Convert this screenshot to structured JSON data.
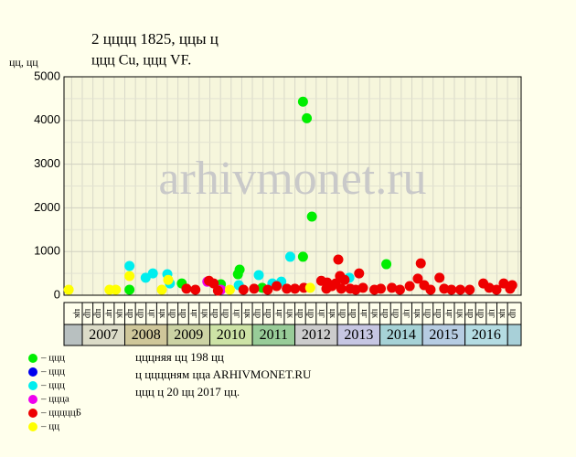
{
  "chart_data": {
    "type": "scatter",
    "title": "2 цццц 1825, ццы ц",
    "subtitle": "ццц Cu, ццц VF.",
    "y_label": "цц, цц",
    "watermark": "arhivmonet.ru",
    "xlim": [
      2006.57,
      2017.32
    ],
    "ylim": [
      0,
      5000
    ],
    "yticks": [
      0,
      1000,
      2000,
      3000,
      4000,
      5000
    ],
    "ygrid_minor": [
      500,
      1500,
      2500,
      3500,
      4500
    ],
    "grid": true,
    "years": [
      "2007",
      "2008",
      "2009",
      "2010",
      "2011",
      "2012",
      "2013",
      "2014",
      "2015",
      "2016"
    ],
    "year_colors": [
      "#dcdcc8",
      "#cfc79a",
      "#ccd3a4",
      "#cde3a6",
      "#98cc98",
      "#cccccc",
      "#c6c6e2",
      "#a6d2d6",
      "#b6cce2",
      "#b4dce2"
    ],
    "edge_colors": [
      "#b8c0c0",
      "#a8d0d8"
    ],
    "quarters_start": 2006.75,
    "quarter_labels": [
      "цк",
      "цр",
      "цр",
      "цг",
      "цк",
      "цр",
      "цр",
      "цг",
      "цк",
      "цр",
      "цр",
      "цг",
      "цк",
      "цр",
      "цр",
      "цг",
      "цк",
      "цр",
      "цр",
      "цг",
      "цк",
      "цр",
      "цр",
      "цг",
      "цк",
      "цр",
      "цр",
      "цг",
      "цк",
      "цр",
      "цр",
      "цг",
      "цк",
      "цр",
      "цр",
      "цг",
      "цк",
      "цр",
      "цр",
      "цг",
      "цк",
      "цр"
    ],
    "series": [
      {
        "name": "– ццц",
        "color": "#00ee00",
        "x": [
          2008.11,
          2009.34,
          2010.26,
          2010.66,
          2010.7,
          2011.23,
          2012.19,
          2012.28,
          2012.4,
          2012.19,
          2014.15
        ],
        "values": [
          125,
          270,
          250,
          480,
          585,
          170,
          4430,
          4050,
          1800,
          880,
          710
        ]
      },
      {
        "name": "– ццц",
        "color": "#0000ee",
        "x": [],
        "values": []
      },
      {
        "name": "– ццц",
        "color": "#00eeee",
        "x": [
          2008.11,
          2008.49,
          2008.66,
          2009.0,
          2009.06,
          2010.68,
          2011.15,
          2011.47,
          2011.68,
          2011.89,
          2013.28
        ],
        "values": [
          670,
          400,
          500,
          480,
          270,
          230,
          460,
          270,
          310,
          880,
          400
        ]
      },
      {
        "name": "– ццца",
        "color": "#ee00ee",
        "x": [
          2009.94,
          2010.26
        ],
        "values": [
          310,
          125
        ]
      },
      {
        "name": "– цццццБ",
        "color": "#ee0000",
        "x": [
          2009.45,
          2009.66,
          2009.98,
          2010.09,
          2010.19,
          2010.79,
          2011.04,
          2011.36,
          2011.57,
          2011.81,
          2012.0,
          2012.21,
          2012.62,
          2012.74,
          2012.76,
          2012.87,
          2012.96,
          2013.02,
          2013.06,
          2013.09,
          2013.17,
          2013.3,
          2013.43,
          2013.51,
          2013.6,
          2013.87,
          2014.02,
          2014.28,
          2014.47,
          2014.7,
          2014.89,
          2014.96,
          2015.04,
          2015.19,
          2015.4,
          2015.51,
          2015.68,
          2015.89,
          2016.11,
          2016.43,
          2016.57,
          2016.74,
          2016.91,
          2017.06,
          2017.11
        ],
        "values": [
          150,
          125,
          330,
          270,
          105,
          125,
          150,
          125,
          210,
          150,
          150,
          170,
          330,
          150,
          290,
          210,
          270,
          815,
          440,
          150,
          350,
          150,
          125,
          500,
          170,
          125,
          150,
          170,
          125,
          210,
          380,
          730,
          230,
          125,
          400,
          150,
          125,
          125,
          125,
          270,
          170,
          125,
          270,
          150,
          230
        ]
      },
      {
        "name": "– цц",
        "color": "#ffff00",
        "x": [
          2006.68,
          2007.64,
          2007.79,
          2008.11,
          2008.87,
          2009.02,
          2010.47,
          2012.36
        ],
        "values": [
          125,
          125,
          125,
          440,
          125,
          350,
          125,
          170
        ]
      }
    ],
    "notes": [
      "цццняя цц 198 цц",
      "ц ццццням ццa ARHIVMONET.RU",
      "ццц ц 20 цц 2017 цц."
    ]
  }
}
